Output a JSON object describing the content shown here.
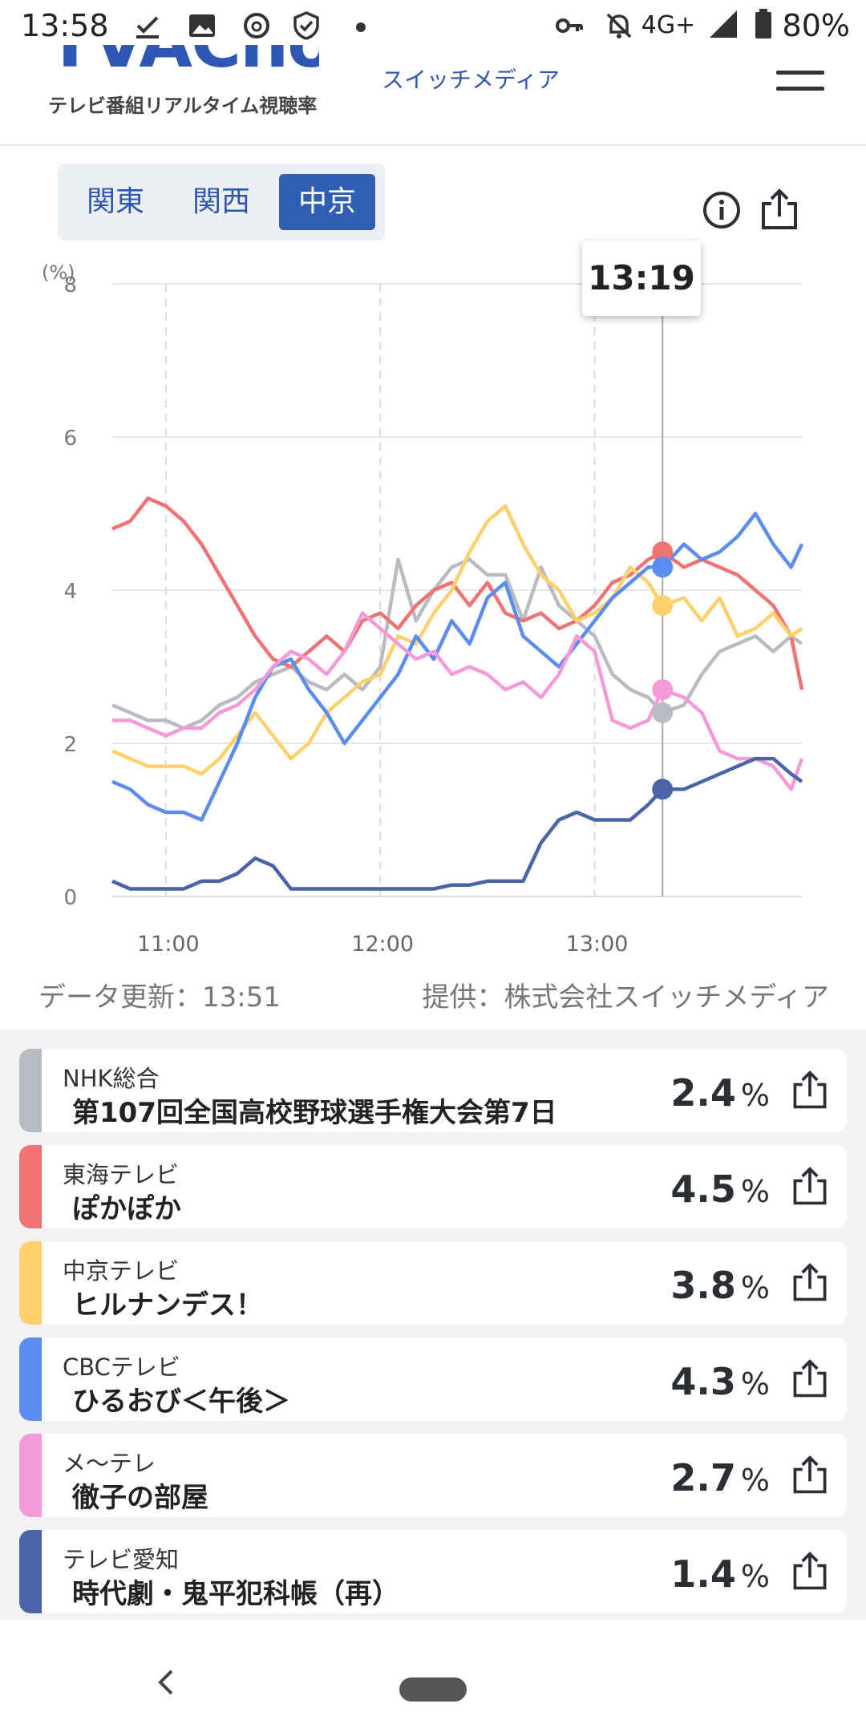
{
  "status_bar": {
    "time": "13:58",
    "network": "4G+",
    "battery": "80%"
  },
  "header": {
    "logo_text": "TVAChow",
    "logo_subtitle": "テレビ番組リアルタイム視聴率",
    "brand_link": "スイッチメディア"
  },
  "region_tabs": [
    {
      "label": "関東",
      "active": false
    },
    {
      "label": "関西",
      "active": false
    },
    {
      "label": "中京",
      "active": true
    }
  ],
  "tooltip_time": "13:19",
  "chart_data": {
    "type": "line",
    "y_unit_label": "(%)",
    "ylim": [
      0,
      8
    ],
    "y_ticks": [
      "0",
      "2",
      "4",
      "6",
      "8"
    ],
    "x_tick_labels": [
      "11:00",
      "12:00",
      "13:00"
    ],
    "x_range_minutes": [
      645,
      838
    ],
    "x_tick_minutes": [
      660,
      720,
      780
    ],
    "cursor_minute": 799,
    "series": [
      {
        "name": "NHK総合",
        "color": "#b8bcc2",
        "cursor_value": 2.4,
        "x": [
          645,
          650,
          655,
          660,
          665,
          670,
          675,
          680,
          685,
          690,
          695,
          700,
          705,
          710,
          715,
          720,
          725,
          730,
          735,
          740,
          745,
          750,
          755,
          760,
          765,
          770,
          775,
          780,
          785,
          790,
          795,
          799,
          805,
          810,
          815,
          820,
          825,
          830,
          835,
          838
        ],
        "y": [
          2.5,
          2.4,
          2.3,
          2.3,
          2.2,
          2.3,
          2.5,
          2.6,
          2.8,
          2.9,
          3.0,
          2.8,
          2.7,
          2.9,
          2.7,
          3.0,
          4.4,
          3.6,
          4.0,
          4.3,
          4.4,
          4.2,
          4.2,
          3.6,
          4.3,
          3.8,
          3.6,
          3.4,
          2.9,
          2.7,
          2.6,
          2.4,
          2.5,
          2.9,
          3.2,
          3.3,
          3.4,
          3.2,
          3.4,
          3.3
        ]
      },
      {
        "name": "東海テレビ",
        "color": "#f07272",
        "cursor_value": 4.5,
        "x": [
          645,
          650,
          655,
          660,
          665,
          670,
          675,
          680,
          685,
          690,
          695,
          700,
          705,
          710,
          715,
          720,
          725,
          730,
          735,
          740,
          745,
          750,
          755,
          760,
          765,
          770,
          775,
          780,
          785,
          790,
          795,
          799,
          805,
          810,
          815,
          820,
          825,
          830,
          835,
          838
        ],
        "y": [
          4.8,
          4.9,
          5.2,
          5.1,
          4.9,
          4.6,
          4.2,
          3.8,
          3.4,
          3.1,
          3.0,
          3.2,
          3.4,
          3.2,
          3.6,
          3.7,
          3.5,
          3.8,
          4.0,
          4.1,
          3.8,
          4.1,
          3.7,
          3.6,
          3.7,
          3.5,
          3.6,
          3.8,
          4.1,
          4.2,
          4.4,
          4.5,
          4.3,
          4.4,
          4.3,
          4.2,
          4.0,
          3.8,
          3.4,
          2.7
        ]
      },
      {
        "name": "中京テレビ",
        "color": "#ffd06b",
        "cursor_value": 3.8,
        "x": [
          645,
          650,
          655,
          660,
          665,
          670,
          675,
          680,
          685,
          690,
          695,
          700,
          705,
          710,
          715,
          720,
          725,
          730,
          735,
          740,
          745,
          750,
          755,
          760,
          765,
          770,
          775,
          780,
          785,
          790,
          795,
          799,
          805,
          810,
          815,
          820,
          825,
          830,
          835,
          838
        ],
        "y": [
          1.9,
          1.8,
          1.7,
          1.7,
          1.7,
          1.6,
          1.8,
          2.1,
          2.4,
          2.1,
          1.8,
          2.0,
          2.4,
          2.6,
          2.8,
          2.9,
          3.4,
          3.3,
          3.7,
          4.0,
          4.5,
          4.9,
          5.1,
          4.6,
          4.2,
          4.0,
          3.6,
          3.7,
          3.9,
          4.3,
          4.1,
          3.8,
          3.9,
          3.6,
          3.9,
          3.4,
          3.5,
          3.7,
          3.4,
          3.5
        ]
      },
      {
        "name": "CBCテレビ",
        "color": "#5b8def",
        "cursor_value": 4.3,
        "x": [
          645,
          650,
          655,
          660,
          665,
          670,
          675,
          680,
          685,
          690,
          695,
          700,
          705,
          710,
          715,
          720,
          725,
          730,
          735,
          740,
          745,
          750,
          755,
          760,
          765,
          770,
          775,
          780,
          785,
          790,
          795,
          799,
          805,
          810,
          815,
          820,
          825,
          830,
          835,
          838
        ],
        "y": [
          1.5,
          1.4,
          1.2,
          1.1,
          1.1,
          1.0,
          1.5,
          2.0,
          2.6,
          3.0,
          3.1,
          2.7,
          2.4,
          2.0,
          2.3,
          2.6,
          2.9,
          3.4,
          3.1,
          3.6,
          3.3,
          3.9,
          4.1,
          3.4,
          3.2,
          3.0,
          3.3,
          3.6,
          3.9,
          4.1,
          4.3,
          4.3,
          4.6,
          4.4,
          4.5,
          4.7,
          5.0,
          4.6,
          4.3,
          4.6
        ]
      },
      {
        "name": "メ～テレ",
        "color": "#f59ad9",
        "cursor_value": 2.7,
        "x": [
          645,
          650,
          655,
          660,
          665,
          670,
          675,
          680,
          685,
          690,
          695,
          700,
          705,
          710,
          715,
          720,
          725,
          730,
          735,
          740,
          745,
          750,
          755,
          760,
          765,
          770,
          775,
          780,
          785,
          790,
          795,
          799,
          805,
          810,
          815,
          820,
          825,
          830,
          835,
          838
        ],
        "y": [
          2.3,
          2.3,
          2.2,
          2.1,
          2.2,
          2.2,
          2.4,
          2.5,
          2.7,
          3.0,
          3.2,
          3.1,
          2.9,
          3.2,
          3.7,
          3.5,
          3.3,
          3.1,
          3.2,
          2.9,
          3.0,
          2.9,
          2.7,
          2.8,
          2.6,
          2.9,
          3.4,
          3.2,
          2.3,
          2.2,
          2.3,
          2.7,
          2.6,
          2.4,
          1.9,
          1.8,
          1.8,
          1.7,
          1.4,
          1.8
        ]
      },
      {
        "name": "テレビ愛知",
        "color": "#4b63a8",
        "cursor_value": 1.4,
        "x": [
          645,
          650,
          655,
          660,
          665,
          670,
          675,
          680,
          685,
          690,
          695,
          700,
          705,
          710,
          715,
          720,
          725,
          730,
          735,
          740,
          745,
          750,
          755,
          760,
          765,
          770,
          775,
          780,
          785,
          790,
          795,
          799,
          805,
          810,
          815,
          820,
          825,
          830,
          835,
          838
        ],
        "y": [
          0.2,
          0.1,
          0.1,
          0.1,
          0.1,
          0.2,
          0.2,
          0.3,
          0.5,
          0.4,
          0.1,
          0.1,
          0.1,
          0.1,
          0.1,
          0.1,
          0.1,
          0.1,
          0.1,
          0.15,
          0.15,
          0.2,
          0.2,
          0.2,
          0.7,
          1.0,
          1.1,
          1.0,
          1.0,
          1.0,
          1.2,
          1.4,
          1.4,
          1.5,
          1.6,
          1.7,
          1.8,
          1.8,
          1.6,
          1.5
        ]
      }
    ]
  },
  "footer": {
    "updated": "データ更新：13:51",
    "provider": "提供：株式会社スイッチメディア"
  },
  "channels": [
    {
      "station": "NHK総合",
      "program": "第107回全国高校野球選手権大会第7日",
      "rating": "2.4",
      "unit": "%",
      "color": "#b8bcc2"
    },
    {
      "station": "東海テレビ",
      "program": "ぽかぽか",
      "rating": "4.5",
      "unit": "%",
      "color": "#f07272"
    },
    {
      "station": "中京テレビ",
      "program": "ヒルナンデス！",
      "rating": "3.8",
      "unit": "%",
      "color": "#ffd06b"
    },
    {
      "station": "CBCテレビ",
      "program": "ひるおび＜午後＞",
      "rating": "4.3",
      "unit": "%",
      "color": "#5b8def"
    },
    {
      "station": "メ～テレ",
      "program": "徹子の部屋",
      "rating": "2.7",
      "unit": "%",
      "color": "#f59ad9"
    },
    {
      "station": "テレビ愛知",
      "program": "時代劇・鬼平犯科帳（再）",
      "rating": "1.4",
      "unit": "%",
      "color": "#4b63a8"
    }
  ]
}
